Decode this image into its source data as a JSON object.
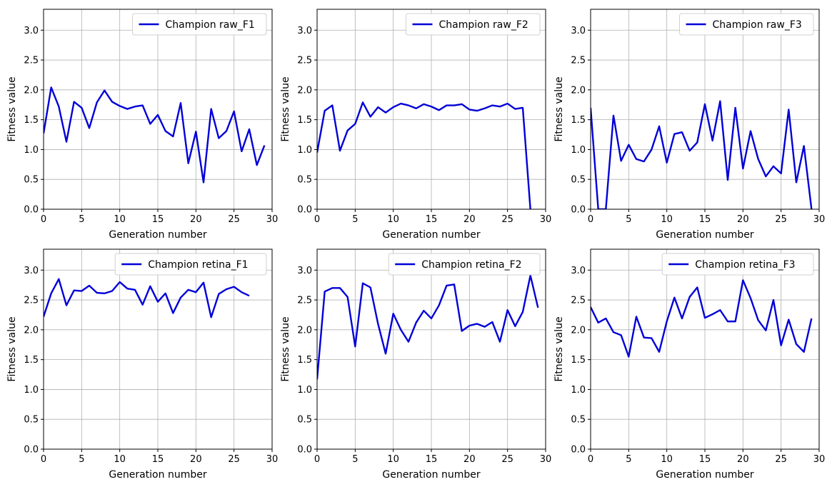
{
  "figure": {
    "grid": true,
    "line_color": "#0000d8",
    "grid_color": "#b0b0b0",
    "legend_placement": "upper right"
  },
  "chart_data": [
    {
      "type": "line",
      "xlabel": "Generation number",
      "ylabel": "Fitness value",
      "xlim": [
        0,
        30
      ],
      "ylim": [
        0,
        3.35
      ],
      "xticks": [
        "0",
        "5",
        "10",
        "15",
        "20",
        "25",
        "30"
      ],
      "yticks": [
        "0.0",
        "0.5",
        "1.0",
        "1.5",
        "2.0",
        "2.5",
        "3.0"
      ],
      "series": [
        {
          "name": "Champion raw_F1",
          "x": [
            0,
            1,
            2,
            3,
            4,
            5,
            6,
            7,
            8,
            9,
            10,
            11,
            12,
            13,
            14,
            15,
            16,
            17,
            18,
            19,
            20,
            21,
            22,
            23,
            24,
            25,
            26,
            27,
            28,
            29
          ],
          "y": [
            1.27,
            2.04,
            1.72,
            1.13,
            1.8,
            1.7,
            1.36,
            1.79,
            1.99,
            1.8,
            1.73,
            1.68,
            1.72,
            1.74,
            1.43,
            1.58,
            1.31,
            1.22,
            1.78,
            0.77,
            1.3,
            0.45,
            1.68,
            1.19,
            1.31,
            1.64,
            0.97,
            1.34,
            0.74,
            1.07
          ]
        }
      ]
    },
    {
      "type": "line",
      "xlabel": "Generation number",
      "ylabel": "Fitness value",
      "xlim": [
        0,
        30
      ],
      "ylim": [
        0,
        3.35
      ],
      "xticks": [
        "0",
        "5",
        "10",
        "15",
        "20",
        "25",
        "30"
      ],
      "yticks": [
        "0.0",
        "0.5",
        "1.0",
        "1.5",
        "2.0",
        "2.5",
        "3.0"
      ],
      "series": [
        {
          "name": "Champion raw_F2",
          "x": [
            0,
            1,
            2,
            3,
            4,
            5,
            6,
            7,
            8,
            9,
            10,
            11,
            12,
            13,
            14,
            15,
            16,
            17,
            18,
            19,
            20,
            21,
            22,
            23,
            24,
            25,
            26,
            27,
            28
          ],
          "y": [
            0.95,
            1.65,
            1.74,
            0.98,
            1.32,
            1.43,
            1.79,
            1.55,
            1.71,
            1.62,
            1.71,
            1.77,
            1.74,
            1.69,
            1.76,
            1.72,
            1.66,
            1.74,
            1.74,
            1.76,
            1.67,
            1.65,
            1.69,
            1.74,
            1.72,
            1.77,
            1.68,
            1.7,
            0.0
          ]
        }
      ]
    },
    {
      "type": "line",
      "xlabel": "Generation number",
      "ylabel": "Fitness value",
      "xlim": [
        0,
        30
      ],
      "ylim": [
        0,
        3.35
      ],
      "xticks": [
        "0",
        "5",
        "10",
        "15",
        "20",
        "25",
        "30"
      ],
      "yticks": [
        "0.0",
        "0.5",
        "1.0",
        "1.5",
        "2.0",
        "2.5",
        "3.0"
      ],
      "series": [
        {
          "name": "Champion raw_F3",
          "x": [
            0,
            1,
            2,
            3,
            4,
            5,
            6,
            7,
            8,
            9,
            10,
            11,
            12,
            13,
            14,
            15,
            16,
            17,
            18,
            19,
            20,
            21,
            22,
            23,
            24,
            25,
            26,
            27,
            28,
            29
          ],
          "y": [
            1.7,
            0.0,
            0.0,
            1.57,
            0.81,
            1.08,
            0.84,
            0.8,
            1.0,
            1.39,
            0.78,
            1.26,
            1.29,
            0.98,
            1.12,
            1.76,
            1.15,
            1.81,
            0.49,
            1.7,
            0.68,
            1.31,
            0.84,
            0.55,
            0.72,
            0.6,
            1.67,
            0.45,
            1.06,
            0.0
          ]
        }
      ]
    },
    {
      "type": "line",
      "xlabel": "Generation number",
      "ylabel": "Fitness value",
      "xlim": [
        0,
        30
      ],
      "ylim": [
        0,
        3.35
      ],
      "xticks": [
        "0",
        "5",
        "10",
        "15",
        "20",
        "25",
        "30"
      ],
      "yticks": [
        "0.0",
        "0.5",
        "1.0",
        "1.5",
        "2.0",
        "2.5",
        "3.0"
      ],
      "series": [
        {
          "name": "Champion retina_F1",
          "x": [
            0,
            1,
            2,
            3,
            4,
            5,
            6,
            7,
            8,
            9,
            10,
            11,
            12,
            13,
            14,
            15,
            16,
            17,
            18,
            19,
            20,
            21,
            22,
            23,
            24,
            25,
            26,
            27
          ],
          "y": [
            2.22,
            2.61,
            2.85,
            2.41,
            2.66,
            2.65,
            2.74,
            2.62,
            2.61,
            2.65,
            2.8,
            2.69,
            2.67,
            2.42,
            2.73,
            2.47,
            2.61,
            2.28,
            2.54,
            2.67,
            2.63,
            2.79,
            2.21,
            2.6,
            2.68,
            2.72,
            2.63,
            2.57
          ]
        }
      ]
    },
    {
      "type": "line",
      "xlabel": "Generation number",
      "ylabel": "Fitness value",
      "xlim": [
        0,
        30
      ],
      "ylim": [
        0,
        3.35
      ],
      "xticks": [
        "0",
        "5",
        "10",
        "15",
        "20",
        "25",
        "30"
      ],
      "yticks": [
        "0.0",
        "0.5",
        "1.0",
        "1.5",
        "2.0",
        "2.5",
        "3.0"
      ],
      "series": [
        {
          "name": "Champion retina_F2",
          "x": [
            0,
            1,
            2,
            3,
            4,
            5,
            6,
            7,
            8,
            9,
            10,
            11,
            12,
            13,
            14,
            15,
            16,
            17,
            18,
            19,
            20,
            21,
            22,
            23,
            24,
            25,
            26,
            27,
            28,
            29
          ],
          "y": [
            1.17,
            2.64,
            2.7,
            2.7,
            2.55,
            1.72,
            2.78,
            2.71,
            2.1,
            1.6,
            2.27,
            2.0,
            1.8,
            2.12,
            2.32,
            2.19,
            2.41,
            2.74,
            2.76,
            1.98,
            2.07,
            2.1,
            2.05,
            2.13,
            1.8,
            2.33,
            2.06,
            2.3,
            2.91,
            2.37
          ]
        }
      ]
    },
    {
      "type": "line",
      "xlabel": "Generation number",
      "ylabel": "Fitness value",
      "xlim": [
        0,
        30
      ],
      "ylim": [
        0,
        3.35
      ],
      "xticks": [
        "0",
        "5",
        "10",
        "15",
        "20",
        "25",
        "30"
      ],
      "yticks": [
        "0.0",
        "0.5",
        "1.0",
        "1.5",
        "2.0",
        "2.5",
        "3.0"
      ],
      "series": [
        {
          "name": "Champion retina_F3",
          "x": [
            0,
            1,
            2,
            3,
            4,
            5,
            6,
            7,
            8,
            9,
            10,
            11,
            12,
            13,
            14,
            15,
            16,
            17,
            18,
            19,
            20,
            21,
            22,
            23,
            24,
            25,
            26,
            27,
            28,
            29
          ],
          "y": [
            2.38,
            2.12,
            2.19,
            1.96,
            1.91,
            1.55,
            2.22,
            1.87,
            1.86,
            1.63,
            2.14,
            2.54,
            2.19,
            2.55,
            2.71,
            2.2,
            2.26,
            2.33,
            2.14,
            2.14,
            2.83,
            2.53,
            2.16,
            1.99,
            2.5,
            1.74,
            2.17,
            1.76,
            1.63,
            2.19
          ]
        }
      ]
    }
  ]
}
